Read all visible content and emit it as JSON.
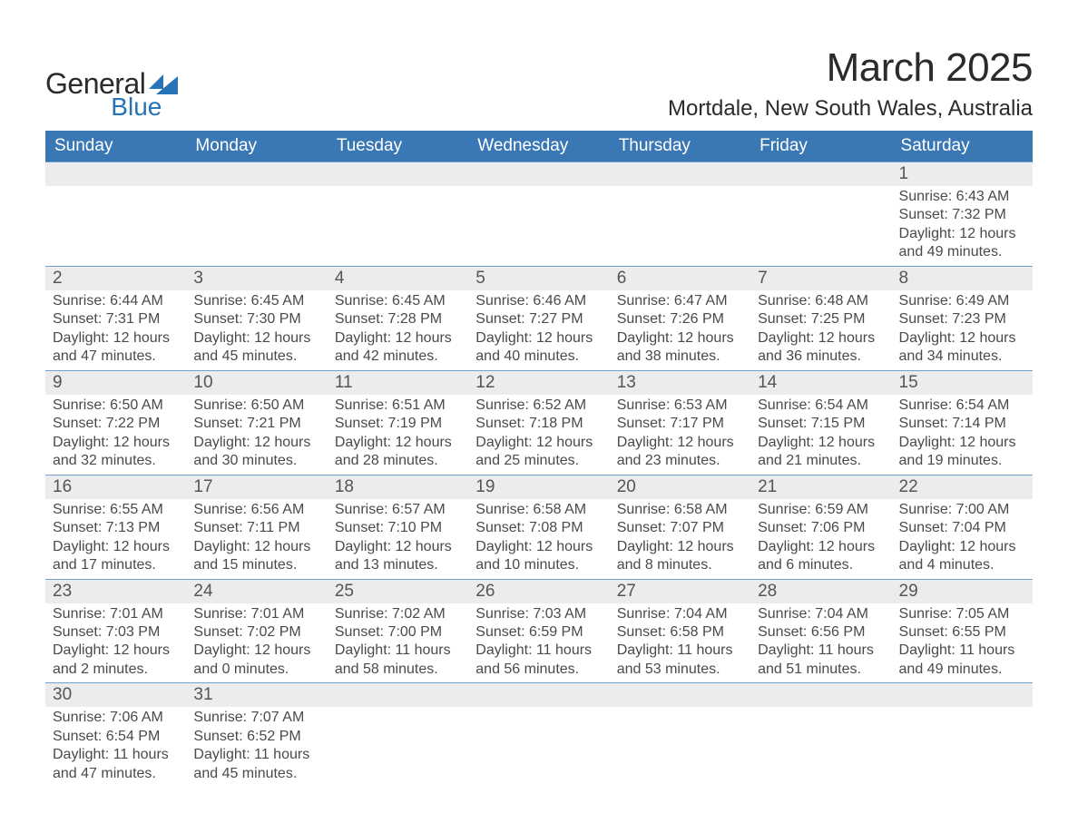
{
  "brand": {
    "line1": "General",
    "line2": "Blue",
    "accent_color": "#2673b6"
  },
  "title": "March 2025",
  "location": "Mortdale, New South Wales, Australia",
  "colors": {
    "header_bg": "#3a78b5",
    "header_text": "#ffffff",
    "daynum_bg": "#ececec",
    "row_border": "#6fa0cf",
    "body_text": "#4a4a4a",
    "page_bg": "#ffffff"
  },
  "typography": {
    "title_fontsize": 44,
    "location_fontsize": 24,
    "weekday_fontsize": 19,
    "daynum_fontsize": 19,
    "detail_fontsize": 16
  },
  "calendar": {
    "type": "table",
    "weekdays": [
      "Sunday",
      "Monday",
      "Tuesday",
      "Wednesday",
      "Thursday",
      "Friday",
      "Saturday"
    ],
    "first_weekday_index": 6,
    "days_in_month": 31,
    "days": [
      {
        "n": 1,
        "sunrise": "6:43 AM",
        "sunset": "7:32 PM",
        "daylight": "12 hours and 49 minutes."
      },
      {
        "n": 2,
        "sunrise": "6:44 AM",
        "sunset": "7:31 PM",
        "daylight": "12 hours and 47 minutes."
      },
      {
        "n": 3,
        "sunrise": "6:45 AM",
        "sunset": "7:30 PM",
        "daylight": "12 hours and 45 minutes."
      },
      {
        "n": 4,
        "sunrise": "6:45 AM",
        "sunset": "7:28 PM",
        "daylight": "12 hours and 42 minutes."
      },
      {
        "n": 5,
        "sunrise": "6:46 AM",
        "sunset": "7:27 PM",
        "daylight": "12 hours and 40 minutes."
      },
      {
        "n": 6,
        "sunrise": "6:47 AM",
        "sunset": "7:26 PM",
        "daylight": "12 hours and 38 minutes."
      },
      {
        "n": 7,
        "sunrise": "6:48 AM",
        "sunset": "7:25 PM",
        "daylight": "12 hours and 36 minutes."
      },
      {
        "n": 8,
        "sunrise": "6:49 AM",
        "sunset": "7:23 PM",
        "daylight": "12 hours and 34 minutes."
      },
      {
        "n": 9,
        "sunrise": "6:50 AM",
        "sunset": "7:22 PM",
        "daylight": "12 hours and 32 minutes."
      },
      {
        "n": 10,
        "sunrise": "6:50 AM",
        "sunset": "7:21 PM",
        "daylight": "12 hours and 30 minutes."
      },
      {
        "n": 11,
        "sunrise": "6:51 AM",
        "sunset": "7:19 PM",
        "daylight": "12 hours and 28 minutes."
      },
      {
        "n": 12,
        "sunrise": "6:52 AM",
        "sunset": "7:18 PM",
        "daylight": "12 hours and 25 minutes."
      },
      {
        "n": 13,
        "sunrise": "6:53 AM",
        "sunset": "7:17 PM",
        "daylight": "12 hours and 23 minutes."
      },
      {
        "n": 14,
        "sunrise": "6:54 AM",
        "sunset": "7:15 PM",
        "daylight": "12 hours and 21 minutes."
      },
      {
        "n": 15,
        "sunrise": "6:54 AM",
        "sunset": "7:14 PM",
        "daylight": "12 hours and 19 minutes."
      },
      {
        "n": 16,
        "sunrise": "6:55 AM",
        "sunset": "7:13 PM",
        "daylight": "12 hours and 17 minutes."
      },
      {
        "n": 17,
        "sunrise": "6:56 AM",
        "sunset": "7:11 PM",
        "daylight": "12 hours and 15 minutes."
      },
      {
        "n": 18,
        "sunrise": "6:57 AM",
        "sunset": "7:10 PM",
        "daylight": "12 hours and 13 minutes."
      },
      {
        "n": 19,
        "sunrise": "6:58 AM",
        "sunset": "7:08 PM",
        "daylight": "12 hours and 10 minutes."
      },
      {
        "n": 20,
        "sunrise": "6:58 AM",
        "sunset": "7:07 PM",
        "daylight": "12 hours and 8 minutes."
      },
      {
        "n": 21,
        "sunrise": "6:59 AM",
        "sunset": "7:06 PM",
        "daylight": "12 hours and 6 minutes."
      },
      {
        "n": 22,
        "sunrise": "7:00 AM",
        "sunset": "7:04 PM",
        "daylight": "12 hours and 4 minutes."
      },
      {
        "n": 23,
        "sunrise": "7:01 AM",
        "sunset": "7:03 PM",
        "daylight": "12 hours and 2 minutes."
      },
      {
        "n": 24,
        "sunrise": "7:01 AM",
        "sunset": "7:02 PM",
        "daylight": "12 hours and 0 minutes."
      },
      {
        "n": 25,
        "sunrise": "7:02 AM",
        "sunset": "7:00 PM",
        "daylight": "11 hours and 58 minutes."
      },
      {
        "n": 26,
        "sunrise": "7:03 AM",
        "sunset": "6:59 PM",
        "daylight": "11 hours and 56 minutes."
      },
      {
        "n": 27,
        "sunrise": "7:04 AM",
        "sunset": "6:58 PM",
        "daylight": "11 hours and 53 minutes."
      },
      {
        "n": 28,
        "sunrise": "7:04 AM",
        "sunset": "6:56 PM",
        "daylight": "11 hours and 51 minutes."
      },
      {
        "n": 29,
        "sunrise": "7:05 AM",
        "sunset": "6:55 PM",
        "daylight": "11 hours and 49 minutes."
      },
      {
        "n": 30,
        "sunrise": "7:06 AM",
        "sunset": "6:54 PM",
        "daylight": "11 hours and 47 minutes."
      },
      {
        "n": 31,
        "sunrise": "7:07 AM",
        "sunset": "6:52 PM",
        "daylight": "11 hours and 45 minutes."
      }
    ],
    "labels": {
      "sunrise": "Sunrise:",
      "sunset": "Sunset:",
      "daylight": "Daylight:"
    }
  }
}
